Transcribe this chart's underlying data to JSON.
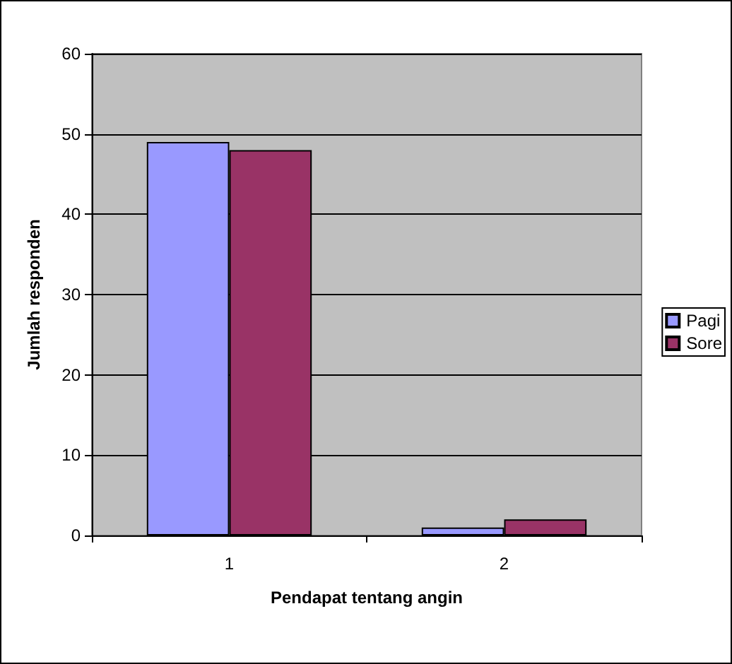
{
  "chart_data": {
    "type": "bar",
    "xlabel": "Pendapat tentang angin",
    "ylabel": "Jumlah responden",
    "categories": [
      "1",
      "2"
    ],
    "series": [
      {
        "name": "Pagi",
        "color": "#9999ff",
        "values": [
          49,
          1
        ]
      },
      {
        "name": "Sore",
        "color": "#993366",
        "values": [
          48,
          2
        ]
      }
    ],
    "ylim": [
      0,
      60
    ],
    "yticks": [
      0,
      10,
      20,
      30,
      40,
      50,
      60
    ],
    "grid": "y",
    "legend": "right"
  }
}
